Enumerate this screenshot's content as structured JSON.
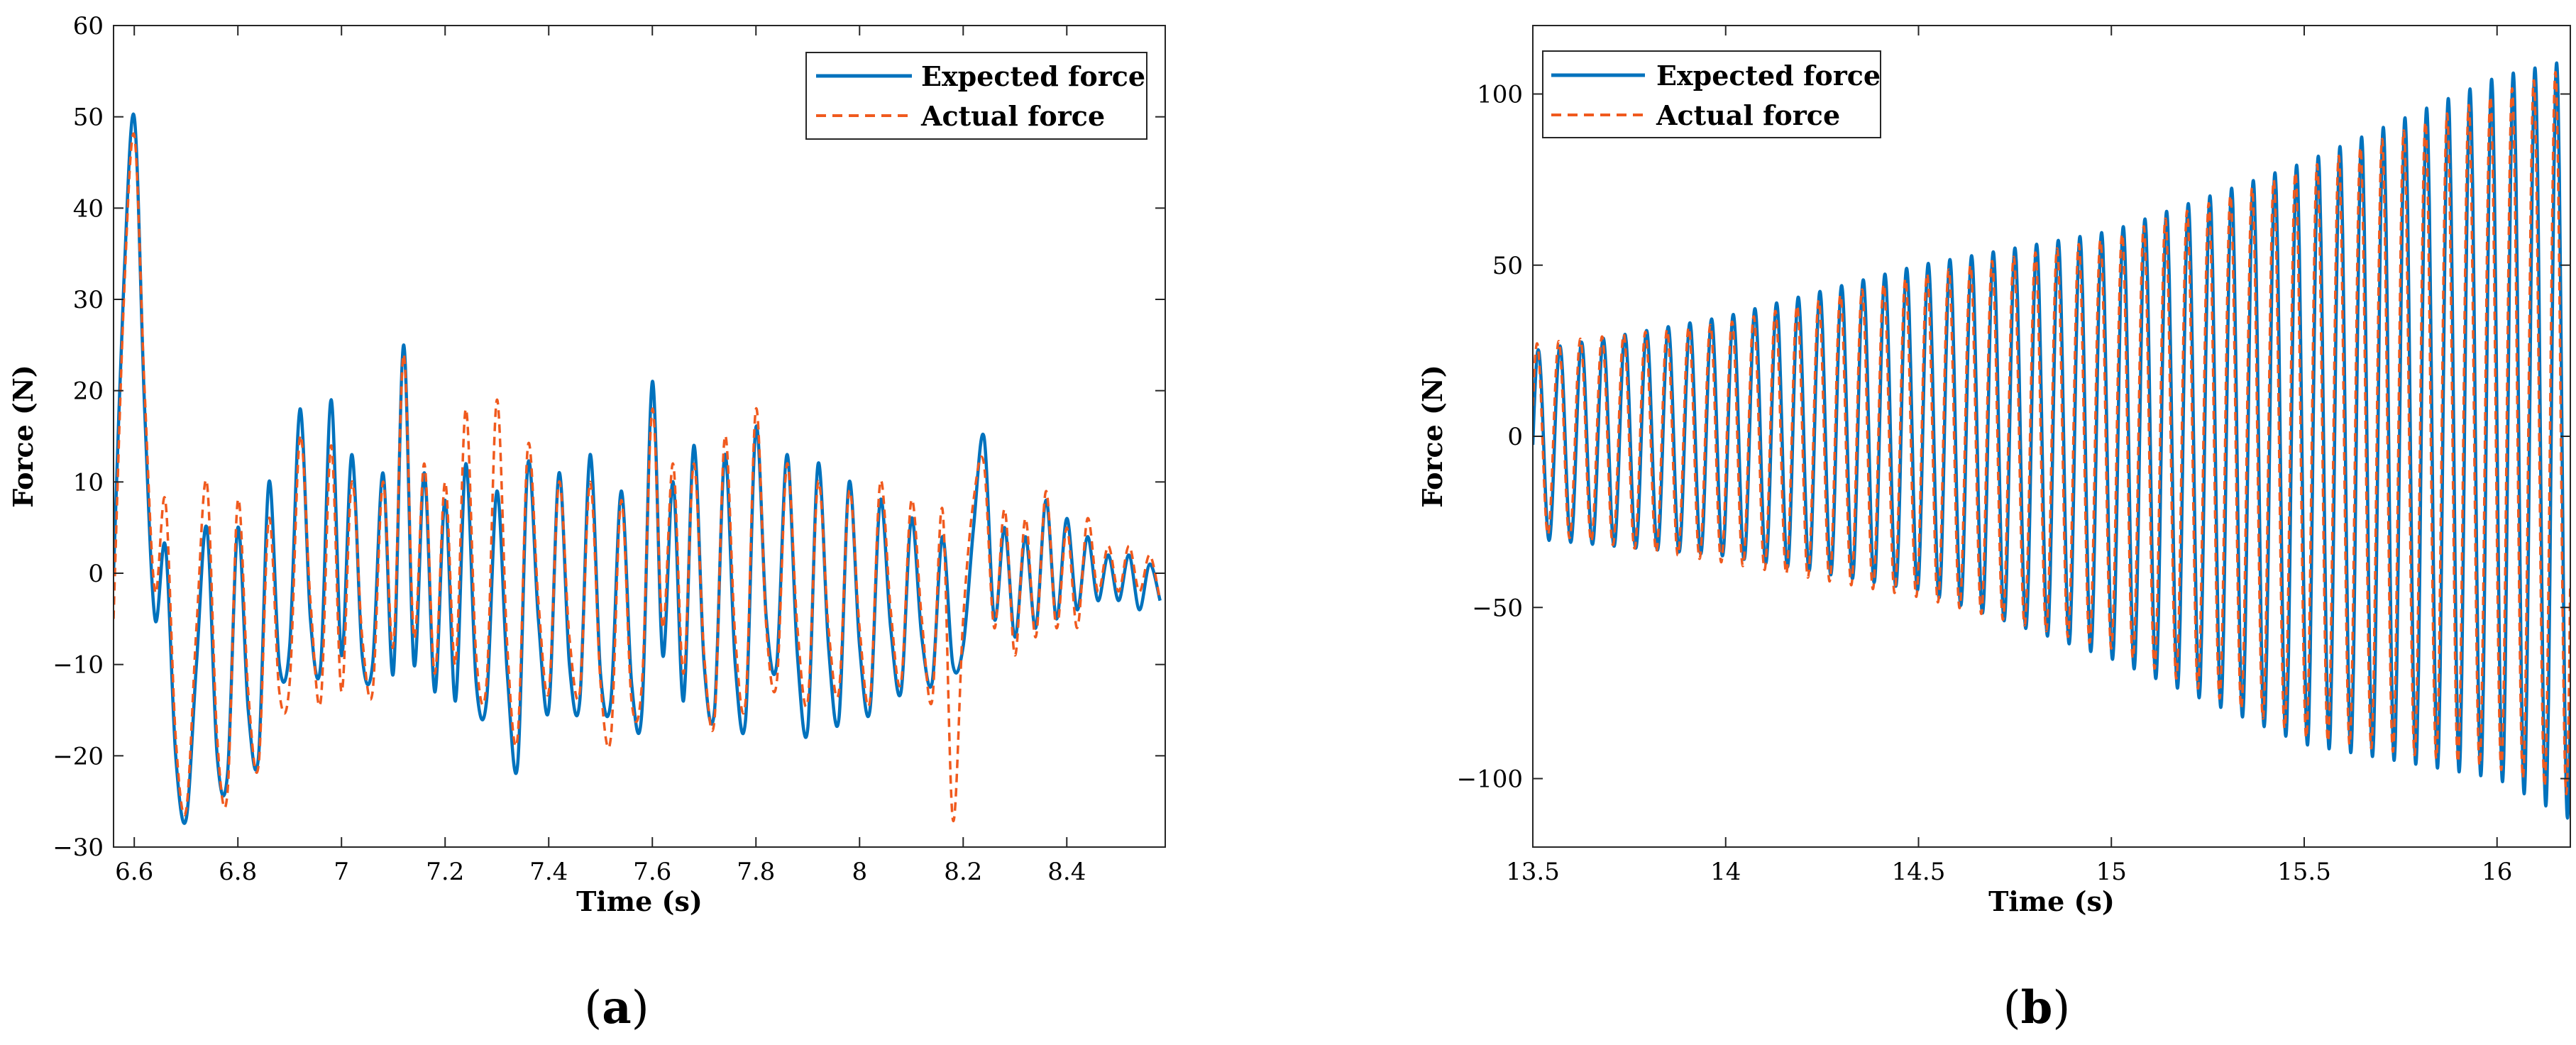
{
  "figure": {
    "panels": [
      {
        "caption_open": "(",
        "caption_letter": "a",
        "caption_close": ")"
      },
      {
        "caption_open": "(",
        "caption_letter": "b",
        "caption_close": ")"
      }
    ]
  },
  "colors": {
    "expected": "#0072BD",
    "actual": "#F05A1E",
    "axis": "#262626"
  },
  "chart_data": [
    {
      "type": "line",
      "xlabel": "Time (s)",
      "ylabel": "Force (N)",
      "xlim": [
        6.56,
        8.59
      ],
      "ylim": [
        -30,
        60
      ],
      "xticks": [
        6.6,
        6.8,
        7,
        7.2,
        7.4,
        7.6,
        7.8,
        8,
        8.2,
        8.4
      ],
      "xtick_labels": [
        "6.6",
        "6.8",
        "7",
        "7.2",
        "7.4",
        "7.6",
        "7.8",
        "8",
        "8.2",
        "8.4"
      ],
      "yticks": [
        -30,
        -20,
        -10,
        0,
        10,
        20,
        30,
        40,
        50,
        60
      ],
      "ytick_labels": [
        "−30",
        "−20",
        "−10",
        "0",
        "10",
        "20",
        "30",
        "40",
        "50",
        "60"
      ],
      "grid": false,
      "legend_position": "top-right",
      "series": [
        {
          "name": "Expected force",
          "style": "solid",
          "x": [
            6.56,
            6.58,
            6.6,
            6.62,
            6.64,
            6.66,
            6.68,
            6.7,
            6.72,
            6.74,
            6.76,
            6.78,
            6.8,
            6.82,
            6.84,
            6.86,
            6.88,
            6.9,
            6.92,
            6.94,
            6.96,
            6.98,
            7.0,
            7.02,
            7.04,
            7.06,
            7.08,
            7.1,
            7.12,
            7.14,
            7.16,
            7.18,
            7.2,
            7.22,
            7.24,
            7.26,
            7.28,
            7.3,
            7.32,
            7.34,
            7.36,
            7.38,
            7.4,
            7.42,
            7.44,
            7.46,
            7.48,
            7.5,
            7.52,
            7.54,
            7.56,
            7.58,
            7.6,
            7.62,
            7.64,
            7.66,
            7.68,
            7.7,
            7.72,
            7.74,
            7.76,
            7.78,
            7.8,
            7.82,
            7.84,
            7.86,
            7.88,
            7.9,
            7.92,
            7.94,
            7.96,
            7.98,
            8.0,
            8.02,
            8.04,
            8.06,
            8.08,
            8.1,
            8.12,
            8.14,
            8.16,
            8.18,
            8.2,
            8.22,
            8.24,
            8.26,
            8.28,
            8.3,
            8.32,
            8.34,
            8.36,
            8.38,
            8.4,
            8.42,
            8.44,
            8.46,
            8.48,
            8.5,
            8.52,
            8.54,
            8.56,
            8.58
          ],
          "y": [
            0,
            32,
            50,
            18,
            -5,
            3,
            -20,
            -27,
            -10,
            5,
            -20,
            -22,
            5,
            -15,
            -20,
            10,
            -10,
            -8,
            18,
            -5,
            -10,
            19,
            -9,
            13,
            -9,
            -10,
            11,
            -11,
            25,
            -10,
            11,
            -13,
            8,
            -14,
            12,
            -12,
            -14,
            9,
            -11,
            -21,
            12,
            -5,
            -15,
            11,
            -10,
            -14,
            13,
            -11,
            -14,
            9,
            -12,
            -15,
            21,
            -9,
            10,
            -14,
            14,
            -10,
            -15,
            13,
            -10,
            -16,
            16,
            -5,
            -10,
            13,
            -9,
            -17,
            12,
            -8,
            -16,
            10,
            -8,
            -15,
            8,
            -6,
            -13,
            6,
            -7,
            -12,
            4,
            -10,
            -8,
            5,
            15,
            -5,
            5,
            -7,
            4,
            -6,
            8,
            -5,
            6,
            -4,
            4,
            -3,
            2,
            -3,
            2,
            -4,
            1,
            -3
          ]
        },
        {
          "name": "Actual force",
          "style": "dashed",
          "x": [
            6.56,
            6.58,
            6.6,
            6.62,
            6.64,
            6.66,
            6.68,
            6.7,
            6.72,
            6.74,
            6.76,
            6.78,
            6.8,
            6.82,
            6.84,
            6.86,
            6.88,
            6.9,
            6.92,
            6.94,
            6.96,
            6.98,
            7.0,
            7.02,
            7.04,
            7.06,
            7.08,
            7.1,
            7.12,
            7.14,
            7.16,
            7.18,
            7.2,
            7.22,
            7.24,
            7.26,
            7.28,
            7.3,
            7.32,
            7.34,
            7.36,
            7.38,
            7.4,
            7.42,
            7.44,
            7.46,
            7.48,
            7.5,
            7.52,
            7.54,
            7.56,
            7.58,
            7.6,
            7.62,
            7.64,
            7.66,
            7.68,
            7.7,
            7.72,
            7.74,
            7.76,
            7.78,
            7.8,
            7.82,
            7.84,
            7.86,
            7.88,
            7.9,
            7.92,
            7.94,
            7.96,
            7.98,
            8.0,
            8.02,
            8.04,
            8.06,
            8.08,
            8.1,
            8.12,
            8.14,
            8.16,
            8.18,
            8.2,
            8.22,
            8.24,
            8.26,
            8.28,
            8.3,
            8.32,
            8.34,
            8.36,
            8.38,
            8.4,
            8.42,
            8.44,
            8.46,
            8.48,
            8.5,
            8.52,
            8.54,
            8.56,
            8.58
          ],
          "y": [
            -5,
            30,
            48,
            20,
            -2,
            8,
            -18,
            -26,
            -6,
            10,
            -18,
            -24,
            8,
            -13,
            -21,
            6,
            -13,
            -12,
            15,
            -3,
            -14,
            14,
            -13,
            10,
            -7,
            -13,
            10,
            -8,
            24,
            -7,
            12,
            -11,
            10,
            -10,
            18,
            -9,
            -12,
            19,
            -8,
            -18,
            14,
            -3,
            -13,
            10,
            -7,
            -13,
            10,
            -12,
            -18,
            8,
            -14,
            -12,
            18,
            -6,
            12,
            -11,
            12,
            -9,
            -16,
            15,
            -7,
            -14,
            18,
            -6,
            -12,
            12,
            -6,
            -14,
            10,
            -6,
            -13,
            9,
            -6,
            -14,
            10,
            -4,
            -12,
            8,
            -5,
            -14,
            7,
            -27,
            -5,
            8,
            12,
            -6,
            7,
            -9,
            6,
            -7,
            9,
            -6,
            5,
            -6,
            6,
            -2,
            3,
            -2,
            3,
            -2,
            2,
            -3
          ]
        }
      ]
    },
    {
      "type": "line",
      "xlabel": "Time (s)",
      "ylabel": "Force (N)",
      "xlim": [
        13.5,
        16.19
      ],
      "ylim": [
        -120,
        120
      ],
      "xticks": [
        13.5,
        14,
        14.5,
        15,
        15.5,
        16
      ],
      "xtick_labels": [
        "13.5",
        "14",
        "14.5",
        "15",
        "15.5",
        "16"
      ],
      "yticks": [
        -100,
        -50,
        0,
        50,
        100
      ],
      "ytick_labels": [
        "−100",
        "−50",
        "0",
        "50",
        "100"
      ],
      "grid": false,
      "legend_position": "top-left",
      "oscillation_frequency_hz": 17.8,
      "series": [
        {
          "name": "Expected force",
          "style": "solid",
          "envelope_t": [
            13.5,
            14.0,
            14.5,
            15.0,
            15.5,
            16.0,
            16.19
          ],
          "envelope_upper": [
            25,
            35,
            50,
            60,
            80,
            105,
            110
          ],
          "envelope_lower": [
            -30,
            -35,
            -45,
            -65,
            -90,
            -100,
            -112
          ]
        },
        {
          "name": "Actual force",
          "style": "dashed",
          "envelope_t": [
            13.5,
            14.0,
            14.5,
            15.0,
            15.5,
            16.0,
            16.19
          ],
          "envelope_upper": [
            27,
            33,
            47,
            58,
            78,
            100,
            108
          ],
          "envelope_lower": [
            -28,
            -37,
            -47,
            -62,
            -88,
            -97,
            -105
          ]
        }
      ]
    }
  ]
}
